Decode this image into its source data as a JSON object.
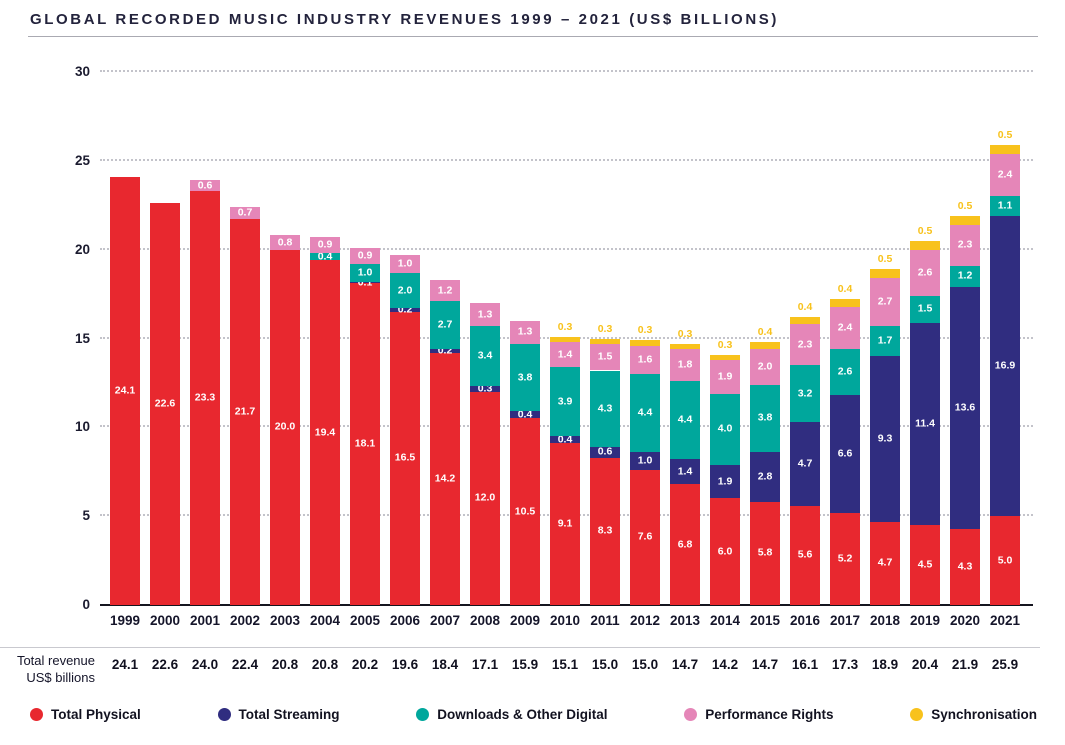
{
  "title": "GLOBAL RECORDED MUSIC INDUSTRY REVENUES 1999 – 2021 (US$ BILLIONS)",
  "totals_label": {
    "line1": "Total revenue",
    "line2": "US$ billions"
  },
  "chart_data": {
    "type": "bar",
    "stacked": true,
    "title": "GLOBAL RECORDED MUSIC INDUSTRY REVENUES 1999 – 2021 (US$ BILLIONS)",
    "categories": [
      "1999",
      "2000",
      "2001",
      "2002",
      "2003",
      "2004",
      "2005",
      "2006",
      "2007",
      "2008",
      "2009",
      "2010",
      "2011",
      "2012",
      "2013",
      "2014",
      "2015",
      "2016",
      "2017",
      "2018",
      "2019",
      "2020",
      "2021"
    ],
    "series": [
      {
        "name": "Total Physical",
        "color": "#e8282f",
        "values": [
          24.1,
          22.6,
          23.3,
          21.7,
          20.0,
          19.4,
          18.1,
          16.5,
          14.2,
          12.0,
          10.5,
          9.1,
          8.3,
          7.6,
          6.8,
          6.0,
          5.8,
          5.6,
          5.2,
          4.7,
          4.5,
          4.3,
          5.0
        ]
      },
      {
        "name": "Total Streaming",
        "color": "#302d80",
        "values": [
          0,
          0,
          0,
          0,
          0,
          0,
          0.1,
          0.2,
          0.2,
          0.3,
          0.4,
          0.4,
          0.6,
          1.0,
          1.4,
          1.9,
          2.8,
          4.7,
          6.6,
          9.3,
          11.4,
          13.6,
          16.9
        ]
      },
      {
        "name": "Downloads & Other Digital",
        "color": "#00a79c",
        "values": [
          0,
          0,
          0,
          0,
          0,
          0.4,
          1.0,
          2.0,
          2.7,
          3.4,
          3.8,
          3.9,
          4.3,
          4.4,
          4.4,
          4.0,
          3.8,
          3.2,
          2.6,
          1.7,
          1.5,
          1.2,
          1.1
        ]
      },
      {
        "name": "Performance Rights",
        "color": "#e586b8",
        "values": [
          0,
          0,
          0.6,
          0.7,
          0.8,
          0.9,
          0.9,
          1.0,
          1.2,
          1.3,
          1.3,
          1.4,
          1.5,
          1.6,
          1.8,
          1.9,
          2.0,
          2.3,
          2.4,
          2.7,
          2.6,
          2.3,
          2.4
        ]
      },
      {
        "name": "Synchronisation",
        "color": "#f8c21c",
        "label_above": true,
        "values": [
          0,
          0,
          0,
          0,
          0,
          0,
          0,
          0,
          0,
          0,
          0,
          0.3,
          0.3,
          0.3,
          0.3,
          0.3,
          0.4,
          0.4,
          0.4,
          0.5,
          0.5,
          0.5,
          0.5
        ]
      }
    ],
    "totals": [
      24.1,
      22.6,
      24.0,
      22.4,
      20.8,
      20.8,
      20.2,
      19.6,
      18.4,
      17.1,
      15.9,
      15.1,
      15.0,
      15.0,
      14.7,
      14.2,
      14.7,
      16.1,
      17.3,
      18.9,
      20.4,
      21.9,
      25.9
    ],
    "xlabel": "",
    "ylabel": "US$ billions",
    "ylim": [
      0,
      30
    ],
    "yticks": [
      0,
      5,
      10,
      15,
      20,
      25,
      30
    ],
    "grid": "horizontal-dotted",
    "legend_position": "bottom"
  }
}
